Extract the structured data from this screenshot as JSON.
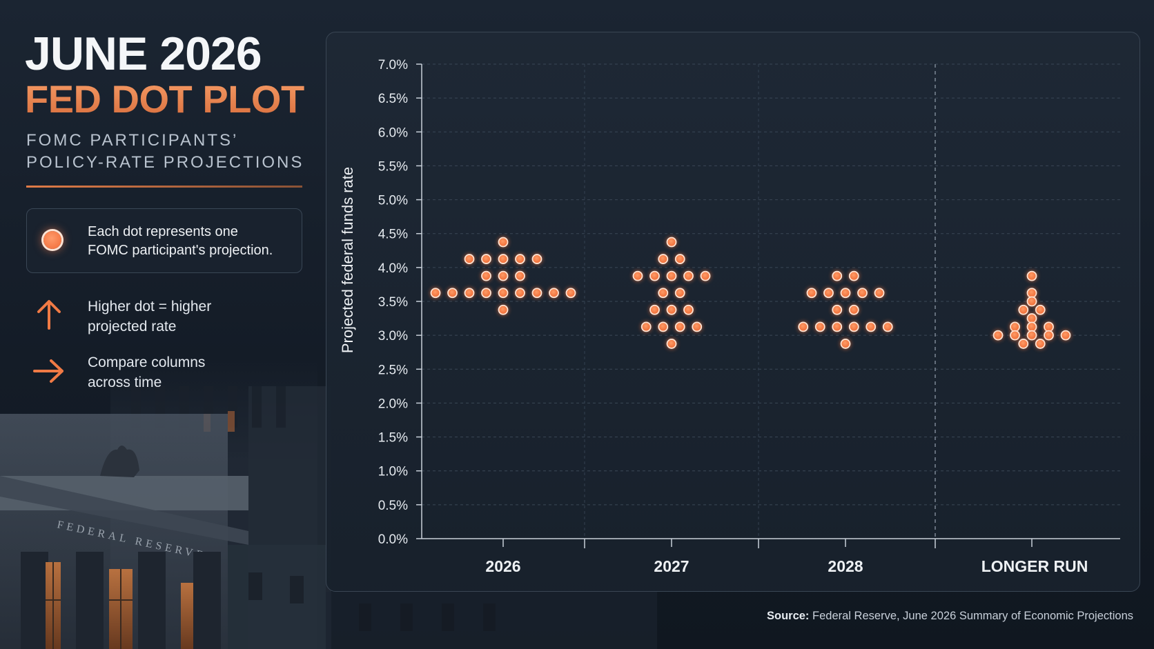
{
  "header": {
    "title": "JUNE 2026",
    "subtitle": "FED DOT PLOT",
    "description_line1": "FOMC PARTICIPANTS’",
    "description_line2": "POLICY-RATE PROJECTIONS"
  },
  "legend": {
    "line1": "Each dot represents one",
    "line2": "FOMC participant's projection."
  },
  "hints": [
    {
      "icon": "arrow-up-icon",
      "line1": "Higher dot = higher",
      "line2": "projected rate"
    },
    {
      "icon": "arrow-right-icon",
      "line1": "Compare columns",
      "line2": "across time"
    }
  ],
  "building": {
    "inscription": "FEDERAL RESERVE"
  },
  "source": {
    "label": "Source:",
    "text": "Federal Reserve, June 2026 Summary of Economic Projections"
  },
  "colors": {
    "accent": "#f07a45",
    "dot": "#f0733c",
    "dot_ring": "#fde3d3",
    "background": "#161f2a"
  },
  "chart_data": {
    "type": "scatter",
    "title": "",
    "ylabel": "Projected federal funds rate",
    "xlabel": "",
    "ylim": [
      0,
      7
    ],
    "yticks": [
      "0.0%",
      "0.5%",
      "1.0%",
      "1.5%",
      "2.0%",
      "2.5%",
      "3.0%",
      "3.5%",
      "4.0%",
      "4.5%",
      "5.0%",
      "5.5%",
      "6.0%",
      "6.5%",
      "7.0%"
    ],
    "grid": true,
    "categories": [
      "2026",
      "2027",
      "2028",
      "LONGER RUN"
    ],
    "series": [
      {
        "category": "2026",
        "values": [
          4.375,
          4.125,
          4.125,
          4.125,
          4.125,
          4.125,
          3.875,
          3.875,
          3.875,
          3.625,
          3.625,
          3.625,
          3.625,
          3.625,
          3.625,
          3.625,
          3.625,
          3.625,
          3.375
        ]
      },
      {
        "category": "2027",
        "values": [
          4.375,
          4.125,
          4.125,
          3.875,
          3.875,
          3.875,
          3.875,
          3.875,
          3.625,
          3.625,
          3.375,
          3.375,
          3.375,
          3.125,
          3.125,
          3.125,
          3.125,
          2.875
        ]
      },
      {
        "category": "2028",
        "values": [
          3.875,
          3.875,
          3.625,
          3.625,
          3.625,
          3.625,
          3.625,
          3.375,
          3.375,
          3.125,
          3.125,
          3.125,
          3.125,
          3.125,
          3.125,
          2.875
        ]
      },
      {
        "category": "LONGER RUN",
        "values": [
          3.875,
          3.625,
          3.5,
          3.375,
          3.375,
          3.25,
          3.125,
          3.125,
          3.125,
          3.0,
          3.0,
          3.0,
          3.0,
          3.0,
          2.875,
          2.875
        ]
      }
    ]
  }
}
